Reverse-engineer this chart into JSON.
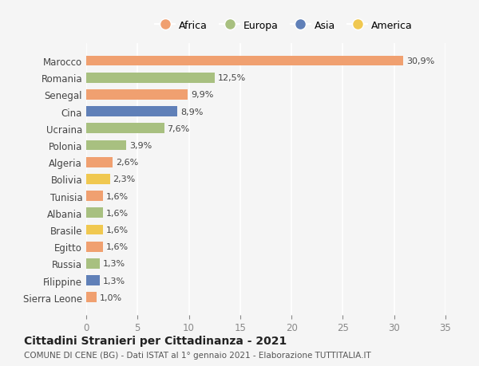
{
  "countries": [
    "Marocco",
    "Romania",
    "Senegal",
    "Cina",
    "Ucraina",
    "Polonia",
    "Algeria",
    "Bolivia",
    "Tunisia",
    "Albania",
    "Brasile",
    "Egitto",
    "Russia",
    "Filippine",
    "Sierra Leone"
  ],
  "values": [
    30.9,
    12.5,
    9.9,
    8.9,
    7.6,
    3.9,
    2.6,
    2.3,
    1.6,
    1.6,
    1.6,
    1.6,
    1.3,
    1.3,
    1.0
  ],
  "labels": [
    "30,9%",
    "12,5%",
    "9,9%",
    "8,9%",
    "7,6%",
    "3,9%",
    "2,6%",
    "2,3%",
    "1,6%",
    "1,6%",
    "1,6%",
    "1,6%",
    "1,3%",
    "1,3%",
    "1,0%"
  ],
  "continents": [
    "Africa",
    "Europa",
    "Africa",
    "Asia",
    "Europa",
    "Europa",
    "Africa",
    "America",
    "Africa",
    "Europa",
    "America",
    "Africa",
    "Europa",
    "Asia",
    "Africa"
  ],
  "continent_colors": {
    "Africa": "#F0A070",
    "Europa": "#A8C080",
    "Asia": "#6080B8",
    "America": "#F0C850"
  },
  "legend_order": [
    "Africa",
    "Europa",
    "Asia",
    "America"
  ],
  "title": "Cittadini Stranieri per Cittadinanza - 2021",
  "subtitle": "COMUNE DI CENE (BG) - Dati ISTAT al 1° gennaio 2021 - Elaborazione TUTTITALIA.IT",
  "xlim": [
    0,
    35
  ],
  "xticks": [
    0,
    5,
    10,
    15,
    20,
    25,
    30,
    35
  ],
  "background_color": "#f5f5f5",
  "bar_height": 0.6
}
